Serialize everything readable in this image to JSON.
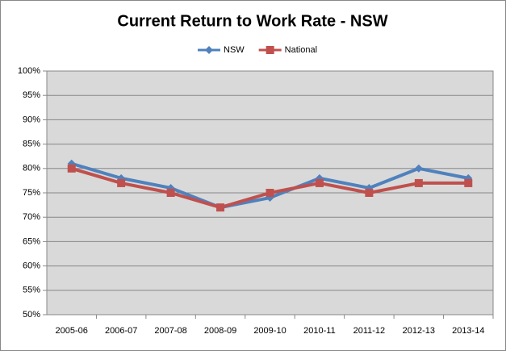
{
  "chart_data": {
    "type": "line",
    "title": "Current Return to Work Rate - NSW",
    "categories": [
      "2005-06",
      "2006-07",
      "2007-08",
      "2008-09",
      "2009-10",
      "2010-11",
      "2011-12",
      "2012-13",
      "2013-14"
    ],
    "series": [
      {
        "name": "NSW",
        "color": "#4f81bd",
        "marker": "diamond",
        "values": [
          81,
          78,
          76,
          72,
          74,
          78,
          76,
          80,
          78
        ]
      },
      {
        "name": "National",
        "color": "#c0504d",
        "marker": "square",
        "values": [
          80,
          77,
          75,
          72,
          75,
          77,
          75,
          77,
          77
        ]
      }
    ],
    "ylim": [
      50,
      100
    ],
    "yticks": [
      {
        "value": 50,
        "label": "50%"
      },
      {
        "value": 55,
        "label": "55%"
      },
      {
        "value": 60,
        "label": "60%"
      },
      {
        "value": 65,
        "label": "65%"
      },
      {
        "value": 70,
        "label": "70%"
      },
      {
        "value": 75,
        "label": "75%"
      },
      {
        "value": 80,
        "label": "80%"
      },
      {
        "value": 85,
        "label": "85%"
      },
      {
        "value": 90,
        "label": "90%"
      },
      {
        "value": 95,
        "label": "95%"
      },
      {
        "value": 100,
        "label": "100%"
      }
    ],
    "grid": true,
    "legend": "top"
  }
}
